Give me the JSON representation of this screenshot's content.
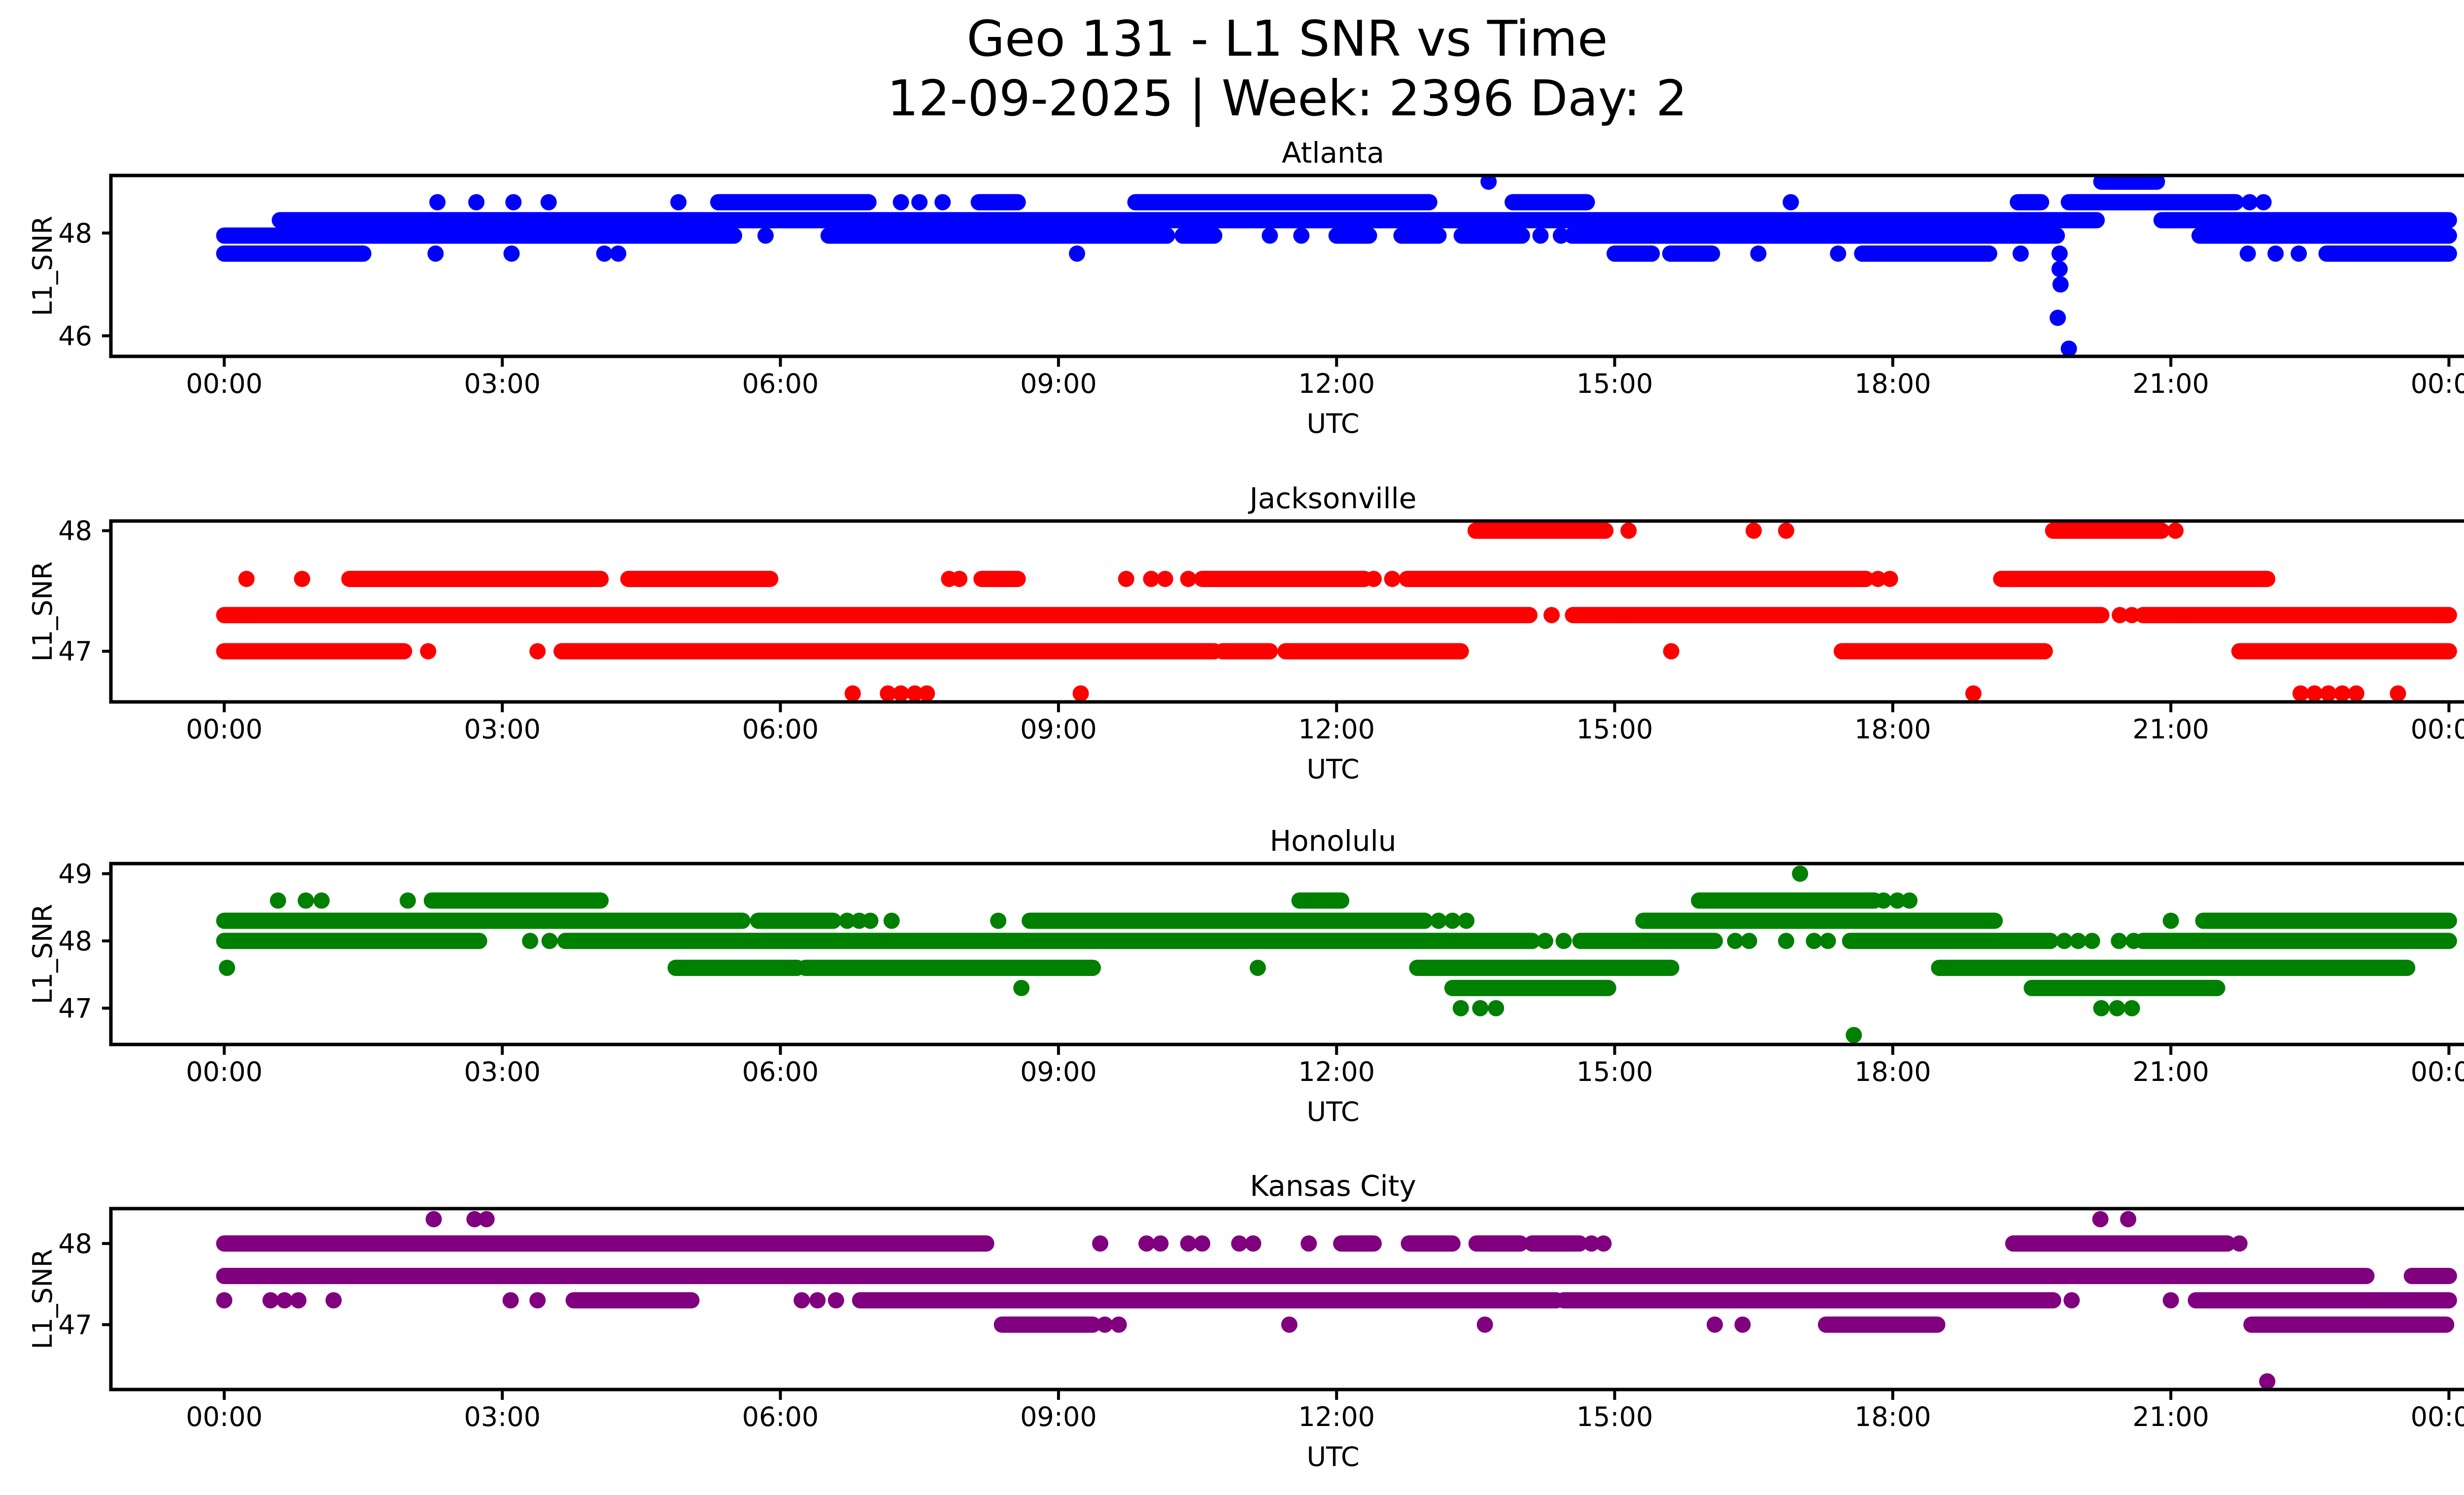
{
  "figure": {
    "title_line1": "Geo 131 - L1 SNR vs Time",
    "title_line2": "12-09-2025 | Week: 2396 Day: 2",
    "background_color": "#ffffff",
    "text_color": "#000000",
    "axes_color": "#000000"
  },
  "x_axis": {
    "label": "UTC",
    "tick_labels": [
      "00:00",
      "03:00",
      "06:00",
      "09:00",
      "12:00",
      "15:00",
      "18:00",
      "21:00",
      "00:00"
    ],
    "tick_hours": [
      0,
      3,
      6,
      9,
      12,
      15,
      18,
      21,
      24
    ]
  },
  "y_axis": {
    "label": "L1_SNR"
  },
  "chart_data": [
    {
      "type": "scatter",
      "title": "Atlanta",
      "color": "#0000FF",
      "xlabel": "UTC",
      "ylabel": "L1_SNR",
      "x_hours_range": [
        0,
        24
      ],
      "ylim": [
        45.6,
        49.12
      ],
      "yticks": [
        46,
        48
      ],
      "grid": false,
      "legend": "none",
      "segments": [
        [
          49.0,
          20.25,
          20.85
        ],
        [
          48.6,
          5.33,
          6.95
        ],
        [
          48.6,
          8.14,
          8.56
        ],
        [
          48.6,
          9.83,
          13.0
        ],
        [
          48.6,
          13.9,
          14.7
        ],
        [
          48.6,
          19.35,
          19.6
        ],
        [
          48.6,
          19.9,
          21.7
        ],
        [
          48.25,
          0.6,
          20.2
        ],
        [
          48.25,
          20.9,
          24.0
        ],
        [
          47.95,
          0.0,
          5.5
        ],
        [
          47.95,
          6.52,
          10.17
        ],
        [
          47.95,
          10.34,
          10.68
        ],
        [
          47.95,
          12.0,
          12.35
        ],
        [
          47.95,
          12.7,
          13.1
        ],
        [
          47.95,
          13.35,
          14.0
        ],
        [
          47.95,
          14.54,
          19.77
        ],
        [
          47.95,
          21.31,
          24.0
        ],
        [
          47.6,
          0.0,
          1.5
        ],
        [
          47.6,
          15.0,
          15.4
        ],
        [
          47.6,
          15.6,
          16.05
        ],
        [
          47.6,
          17.67,
          19.04
        ],
        [
          47.6,
          22.68,
          24.0
        ]
      ],
      "points": [
        [
          49.0,
          [
            13.64
          ]
        ],
        [
          48.6,
          [
            2.3,
            2.72,
            3.12,
            3.5,
            4.9,
            7.3,
            7.5,
            7.75,
            16.9,
            21.85,
            22.0
          ]
        ],
        [
          47.95,
          [
            5.84,
            11.28,
            11.62,
            14.2,
            14.42
          ]
        ],
        [
          47.6,
          [
            2.28,
            3.1,
            4.1,
            4.25,
            9.2,
            16.55,
            17.41,
            19.38,
            19.8,
            21.83,
            22.13,
            22.38
          ]
        ],
        [
          47.3,
          [
            19.8
          ]
        ],
        [
          47.0,
          [
            19.81
          ]
        ],
        [
          46.35,
          [
            19.78
          ]
        ],
        [
          45.75,
          [
            19.9
          ]
        ]
      ]
    },
    {
      "type": "scatter",
      "title": "Jacksonville",
      "color": "#FF0000",
      "xlabel": "UTC",
      "ylabel": "L1_SNR",
      "x_hours_range": [
        0,
        24
      ],
      "ylim": [
        46.58,
        48.08
      ],
      "yticks": [
        47,
        48
      ],
      "grid": false,
      "legend": "none",
      "segments": [
        [
          48.0,
          13.5,
          14.9
        ],
        [
          48.0,
          19.73,
          20.9
        ],
        [
          47.6,
          1.35,
          4.06
        ],
        [
          47.6,
          4.36,
          5.89
        ],
        [
          47.6,
          8.17,
          8.56
        ],
        [
          47.6,
          10.55,
          12.3
        ],
        [
          47.6,
          12.76,
          17.71
        ],
        [
          47.6,
          19.17,
          22.04
        ],
        [
          47.3,
          0.0,
          14.08
        ],
        [
          47.3,
          14.55,
          20.25
        ],
        [
          47.3,
          20.7,
          24.0
        ],
        [
          47.0,
          0.0,
          1.94
        ],
        [
          47.0,
          3.64,
          10.68
        ],
        [
          47.0,
          10.77,
          11.28
        ],
        [
          47.0,
          11.45,
          13.34
        ],
        [
          47.0,
          17.45,
          19.64
        ],
        [
          47.0,
          21.74,
          24.0
        ]
      ],
      "points": [
        [
          48.0,
          [
            15.15,
            16.5,
            16.85,
            21.05
          ]
        ],
        [
          47.6,
          [
            0.24,
            0.84,
            7.82,
            7.93,
            9.73,
            10.0,
            10.15,
            10.4,
            12.4,
            12.6,
            17.84,
            17.97
          ]
        ],
        [
          47.3,
          [
            14.32,
            20.45,
            20.58
          ]
        ],
        [
          47.0,
          [
            2.2,
            3.38,
            15.61
          ]
        ],
        [
          46.65,
          [
            6.78,
            7.16,
            7.3,
            7.45,
            7.58,
            9.24,
            18.87,
            22.4,
            22.55,
            22.7,
            22.85,
            23.0,
            23.45
          ]
        ]
      ]
    },
    {
      "type": "scatter",
      "title": "Honolulu",
      "color": "#008000",
      "xlabel": "UTC",
      "ylabel": "L1_SNR",
      "x_hours_range": [
        0,
        24
      ],
      "ylim": [
        46.46,
        49.15
      ],
      "yticks": [
        47,
        48,
        49
      ],
      "grid": false,
      "legend": "none",
      "segments": [
        [
          48.6,
          2.24,
          4.06
        ],
        [
          48.6,
          11.6,
          12.05
        ],
        [
          48.6,
          15.91,
          17.8
        ],
        [
          48.3,
          0.0,
          5.59
        ],
        [
          48.3,
          5.76,
          6.57
        ],
        [
          48.3,
          8.69,
          12.95
        ],
        [
          48.3,
          15.31,
          19.1
        ],
        [
          48.3,
          21.35,
          24.0
        ],
        [
          48.0,
          0.0,
          2.75
        ],
        [
          48.0,
          3.68,
          14.11
        ],
        [
          48.0,
          14.63,
          16.08
        ],
        [
          48.0,
          17.54,
          19.7
        ],
        [
          48.0,
          20.7,
          24.0
        ],
        [
          47.6,
          4.87,
          6.18
        ],
        [
          47.6,
          6.27,
          9.37
        ],
        [
          47.6,
          12.87,
          15.61
        ],
        [
          47.6,
          18.5,
          23.55
        ],
        [
          47.3,
          13.25,
          14.93
        ],
        [
          47.3,
          19.5,
          21.5
        ]
      ],
      "points": [
        [
          49.0,
          [
            17.0
          ]
        ],
        [
          48.6,
          [
            0.58,
            0.88,
            1.05,
            1.98,
            17.9,
            18.05,
            18.18
          ]
        ],
        [
          48.3,
          [
            6.72,
            6.85,
            6.97,
            7.2,
            8.35,
            13.1,
            13.25,
            13.4,
            21.0
          ]
        ],
        [
          48.0,
          [
            3.3,
            3.51,
            14.25,
            14.45,
            16.3,
            16.45,
            16.85,
            17.15,
            17.3,
            19.85,
            20.0,
            20.15,
            20.44,
            20.6
          ]
        ],
        [
          47.6,
          [
            0.03,
            11.15
          ]
        ],
        [
          47.3,
          [
            8.6
          ]
        ],
        [
          47.0,
          [
            13.34,
            13.55,
            13.72,
            20.25,
            20.42,
            20.58
          ]
        ],
        [
          46.6,
          [
            17.58
          ]
        ]
      ]
    },
    {
      "type": "scatter",
      "title": "Kansas City",
      "color": "#800080",
      "xlabel": "UTC",
      "ylabel": "L1_SNR",
      "x_hours_range": [
        0,
        24
      ],
      "ylim": [
        46.2,
        48.43
      ],
      "yticks": [
        47,
        48
      ],
      "grid": false,
      "legend": "none",
      "segments": [
        [
          48.0,
          0.0,
          8.22
        ],
        [
          48.0,
          12.05,
          12.4
        ],
        [
          48.0,
          12.78,
          13.25
        ],
        [
          48.0,
          13.51,
          13.98
        ],
        [
          48.0,
          14.11,
          14.62
        ],
        [
          48.0,
          19.3,
          21.61
        ],
        [
          47.6,
          0.0,
          23.11
        ],
        [
          47.6,
          23.6,
          24.0
        ],
        [
          47.3,
          3.77,
          5.04
        ],
        [
          47.3,
          6.86,
          14.37
        ],
        [
          47.3,
          14.45,
          19.73
        ],
        [
          47.3,
          21.27,
          24.0
        ],
        [
          47.0,
          8.39,
          9.37
        ],
        [
          47.0,
          17.28,
          18.48
        ],
        [
          47.0,
          21.87,
          23.97
        ]
      ],
      "points": [
        [
          48.3,
          [
            2.26,
            2.7,
            2.83,
            20.24,
            20.54
          ]
        ],
        [
          48.0,
          [
            9.45,
            9.95,
            10.1,
            10.4,
            10.55,
            10.95,
            11.1,
            11.7,
            14.75,
            14.88,
            21.74
          ]
        ],
        [
          47.3,
          [
            0.0,
            0.5,
            0.65,
            0.8,
            1.18,
            3.09,
            3.38,
            6.23,
            6.4,
            6.6,
            19.93,
            21.0
          ]
        ],
        [
          47.0,
          [
            9.5,
            9.65,
            11.49,
            13.6,
            16.08,
            16.38
          ]
        ],
        [
          46.3,
          [
            22.04
          ]
        ]
      ]
    }
  ]
}
